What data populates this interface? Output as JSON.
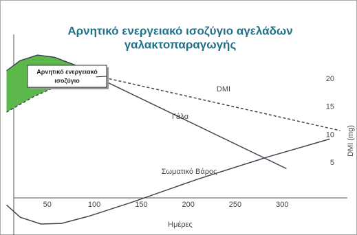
{
  "chart_data": {
    "type": "line",
    "title": [
      "Αρνητικό ενεργειακό ισοζύγιο αγελάδων",
      "γαλακτοπαραγωγής"
    ],
    "xlabel": "Ημέρες",
    "ylabel": "DMI (mg)",
    "annotation": [
      "Αρνητικό ενεργειακό",
      "ισοζύγιο"
    ],
    "area_color": "#5cb84a",
    "xlim": [
      0,
      370
    ],
    "ylim": [
      -7.5,
      28
    ],
    "xticks": [
      50,
      100,
      150,
      200,
      250,
      300
    ],
    "yticks": [
      5,
      10,
      15,
      20
    ],
    "series": [
      {
        "name": "Γάλα",
        "color": "#3d4650",
        "dash": false,
        "x": [
          6.6,
          21,
          39.5,
          57.8,
          79.8,
          101.8,
          304.5
        ],
        "values": [
          21.5,
          23.3,
          24.3,
          23.9,
          22.5,
          20.4,
          4.0
        ]
      },
      {
        "name": "DMI",
        "color": "#3d4650",
        "dash": true,
        "x": [
          6.6,
          35.9,
          65.2,
          101.8,
          361.6
        ],
        "values": [
          14.1,
          16.9,
          19.1,
          20.6,
          10.8
        ]
      },
      {
        "name": "Σωματικό Βάρος",
        "color": "#3d4650",
        "dash": false,
        "x": [
          6.6,
          21.2,
          43.2,
          65.2,
          94.4,
          138.4,
          211.6,
          284.8,
          350.7
        ],
        "values": [
          -2.5,
          -4.7,
          -5.9,
          -5.8,
          -4.5,
          -2.1,
          2.2,
          6.1,
          9.3
        ]
      }
    ]
  }
}
